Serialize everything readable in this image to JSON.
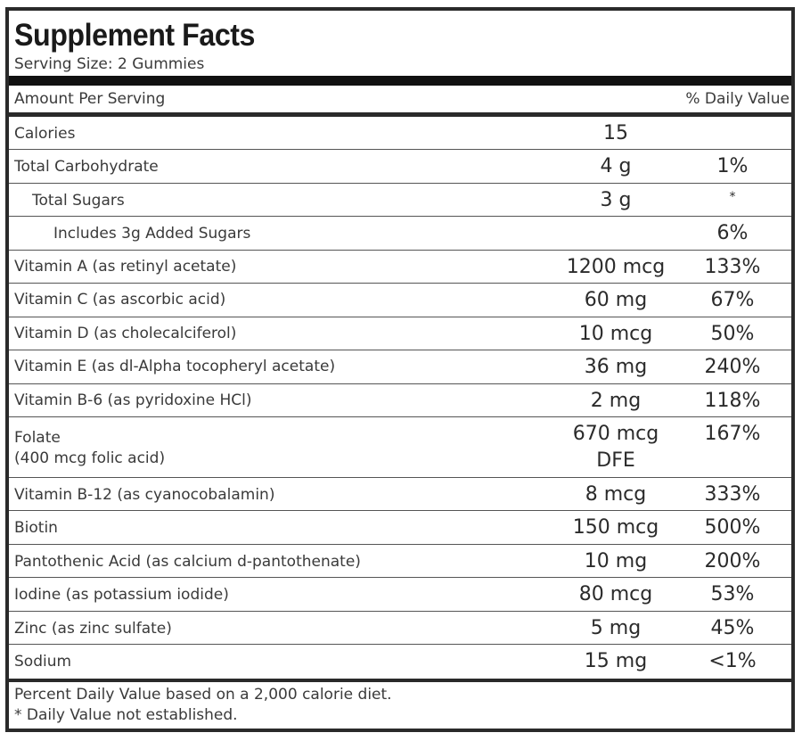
{
  "title": "Supplement Facts",
  "serving_size": "Serving Size: 2 Gummies",
  "header": {
    "amount_per_serving": "Amount Per Serving",
    "daily_value": "% Daily Value"
  },
  "rows": [
    {
      "name": "Calories",
      "amount": "15",
      "dv": ""
    },
    {
      "name": "Total Carbohydrate",
      "amount": "4 g",
      "dv": "1%"
    },
    {
      "name": "Total Sugars",
      "amount": "3 g",
      "dv": "*"
    },
    {
      "name": "Includes 3g Added Sugars",
      "amount": "",
      "dv": "6%"
    },
    {
      "name": "Vitamin A (as retinyl acetate)",
      "amount": "1200 mcg",
      "dv": "133%"
    },
    {
      "name": "Vitamin C (as ascorbic acid)",
      "amount": "60 mg",
      "dv": "67%"
    },
    {
      "name": "Vitamin D (as cholecalciferol)",
      "amount": "10 mcg",
      "dv": "50%"
    },
    {
      "name": "Vitamin E (as dl-Alpha tocopheryl acetate)",
      "amount": "36 mg",
      "dv": "240%"
    },
    {
      "name": "Vitamin B-6 (as pyridoxine HCl)",
      "amount": "2 mg",
      "dv": "118%"
    },
    {
      "name": "Folate",
      "name_sub": "(400 mcg folic acid)",
      "amount": "670 mcg",
      "amount_sub": "DFE",
      "dv": "167%"
    },
    {
      "name": "Vitamin B-12 (as cyanocobalamin)",
      "amount": "8 mcg",
      "dv": "333%"
    },
    {
      "name": "Biotin",
      "amount": "150 mcg",
      "dv": "500%"
    },
    {
      "name": "Pantothenic Acid (as calcium d-pantothenate)",
      "amount": "10 mg",
      "dv": "200%"
    },
    {
      "name": "Iodine (as potassium iodide)",
      "amount": "80 mcg",
      "dv": "53%"
    },
    {
      "name": "Zinc (as zinc sulfate)",
      "amount": "5 mg",
      "dv": "45%"
    },
    {
      "name": "Sodium",
      "amount": "15 mg",
      "dv": "<1%"
    }
  ],
  "footnotes": {
    "line1": "Percent Daily Value based on a 2,000 calorie diet.",
    "line2": "* Daily Value not established."
  }
}
